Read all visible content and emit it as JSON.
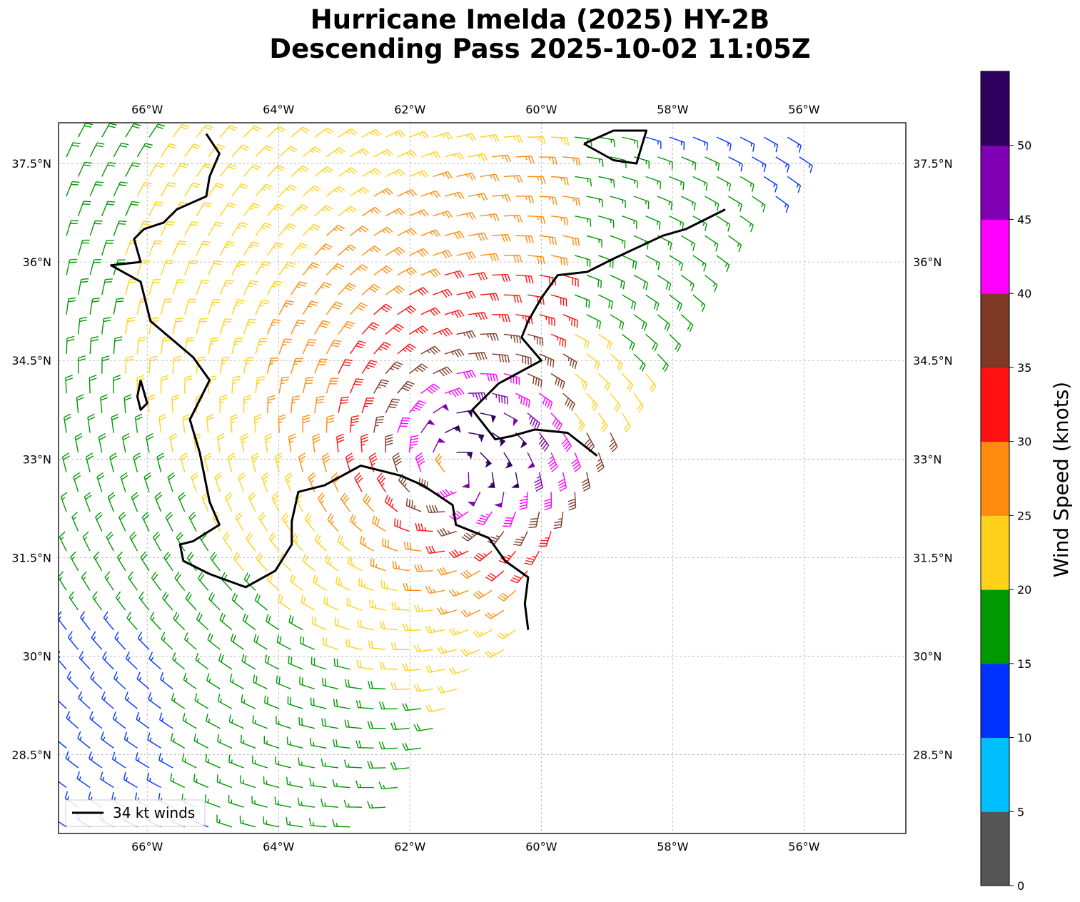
{
  "title_line1": "Hurricane Imelda (2025) HY-2B",
  "title_line2": "Descending Pass 2025-10-02 11:05Z",
  "map": {
    "lon_range": [
      -67.35,
      -54.45
    ],
    "lat_range": [
      27.3,
      38.12
    ],
    "lon_ticks": [
      {
        "value": -66,
        "label": "66°W"
      },
      {
        "value": -64,
        "label": "64°W"
      },
      {
        "value": -62,
        "label": "62°W"
      },
      {
        "value": -60,
        "label": "60°W"
      },
      {
        "value": -58,
        "label": "58°W"
      },
      {
        "value": -56,
        "label": "56°W"
      }
    ],
    "lat_ticks": [
      {
        "value": 37.5,
        "label": "37.5°N"
      },
      {
        "value": 36.0,
        "label": "36°N"
      },
      {
        "value": 34.5,
        "label": "34.5°N"
      },
      {
        "value": 33.0,
        "label": "33°N"
      },
      {
        "value": 31.5,
        "label": "31.5°N"
      },
      {
        "value": 30.0,
        "label": "30°N"
      },
      {
        "value": 28.5,
        "label": "28.5°N"
      }
    ],
    "gridlines": true,
    "legend": {
      "label": "34 kt winds",
      "line_color": "#000000",
      "position": "lower-left"
    },
    "storm_center": {
      "lon": -61.35,
      "lat": 32.85
    }
  },
  "colorbar": {
    "label": "Wind Speed (knots)",
    "range": [
      0,
      55
    ],
    "bins": [
      {
        "min": 0,
        "max": 5,
        "color": "#555555"
      },
      {
        "min": 5,
        "max": 10,
        "color": "#00BFFF"
      },
      {
        "min": 10,
        "max": 15,
        "color": "#0033FF"
      },
      {
        "min": 15,
        "max": 20,
        "color": "#009900"
      },
      {
        "min": 20,
        "max": 25,
        "color": "#FFD11A"
      },
      {
        "min": 25,
        "max": 30,
        "color": "#FF8C0D"
      },
      {
        "min": 30,
        "max": 35,
        "color": "#FF1111"
      },
      {
        "min": 35,
        "max": 40,
        "color": "#7F3A26"
      },
      {
        "min": 40,
        "max": 45,
        "color": "#FF00FF"
      },
      {
        "min": 45,
        "max": 50,
        "color": "#8000B3"
      },
      {
        "min": 50,
        "max": 55,
        "color": "#2E005E"
      }
    ],
    "ticks": [
      {
        "value": 0,
        "label": "0"
      },
      {
        "value": 5,
        "label": "5"
      },
      {
        "value": 10,
        "label": "10"
      },
      {
        "value": 15,
        "label": "15"
      },
      {
        "value": 20,
        "label": "20"
      },
      {
        "value": 25,
        "label": "25"
      },
      {
        "value": 30,
        "label": "30"
      },
      {
        "value": 35,
        "label": "35"
      },
      {
        "value": 40,
        "label": "40"
      },
      {
        "value": 45,
        "label": "45"
      },
      {
        "value": 50,
        "label": "50"
      }
    ]
  },
  "wind_34kt_contours": [
    [
      [
        -65.1,
        37.95
      ],
      [
        -64.9,
        37.65
      ],
      [
        -65.05,
        37.3
      ],
      [
        -65.1,
        37.0
      ],
      [
        -65.55,
        36.8
      ],
      [
        -65.75,
        36.6
      ],
      [
        -66.05,
        36.5
      ],
      [
        -66.2,
        36.35
      ],
      [
        -66.1,
        36.0
      ],
      [
        -66.55,
        35.95
      ],
      [
        -66.1,
        35.7
      ],
      [
        -65.95,
        35.1
      ],
      [
        -65.3,
        34.55
      ],
      [
        -65.05,
        34.2
      ],
      [
        -65.35,
        33.6
      ],
      [
        -65.2,
        33.1
      ],
      [
        -65.05,
        32.35
      ],
      [
        -64.9,
        32.0
      ],
      [
        -65.3,
        31.75
      ],
      [
        -65.5,
        31.7
      ],
      [
        -65.45,
        31.45
      ],
      [
        -65.05,
        31.25
      ],
      [
        -64.5,
        31.05
      ],
      [
        -64.05,
        31.3
      ],
      [
        -63.8,
        31.7
      ],
      [
        -63.8,
        32.05
      ],
      [
        -63.7,
        32.5
      ],
      [
        -63.3,
        32.6
      ],
      [
        -62.75,
        32.9
      ],
      [
        -62.15,
        32.75
      ],
      [
        -61.8,
        32.6
      ],
      [
        -61.35,
        32.3
      ],
      [
        -61.3,
        32.0
      ],
      [
        -60.8,
        31.8
      ],
      [
        -60.55,
        31.45
      ],
      [
        -60.2,
        31.2
      ],
      [
        -60.25,
        30.8
      ],
      [
        -60.2,
        30.4
      ]
    ],
    [
      [
        -66.1,
        34.2
      ],
      [
        -66.0,
        33.85
      ],
      [
        -66.1,
        33.75
      ],
      [
        -66.15,
        33.95
      ],
      [
        -66.1,
        34.2
      ]
    ],
    [
      [
        -59.35,
        37.8
      ],
      [
        -58.9,
        38.0
      ],
      [
        -58.4,
        38.0
      ],
      [
        -58.55,
        37.5
      ],
      [
        -58.9,
        37.55
      ],
      [
        -59.35,
        37.8
      ]
    ],
    [
      [
        -57.2,
        36.8
      ],
      [
        -57.8,
        36.5
      ],
      [
        -58.15,
        36.4
      ],
      [
        -58.9,
        36.05
      ],
      [
        -59.3,
        35.85
      ],
      [
        -59.75,
        35.8
      ],
      [
        -60.0,
        35.45
      ],
      [
        -60.2,
        35.1
      ],
      [
        -60.3,
        34.85
      ],
      [
        -60.0,
        34.5
      ],
      [
        -60.65,
        34.15
      ],
      [
        -61.05,
        33.75
      ],
      [
        -60.7,
        33.3
      ],
      [
        -60.45,
        33.35
      ],
      [
        -60.1,
        33.45
      ],
      [
        -59.6,
        33.4
      ],
      [
        -59.15,
        33.05
      ]
    ]
  ],
  "swath_edge": [
    [
      -67.35,
      27.3
    ],
    [
      -67.35,
      38.12
    ],
    [
      -56.35,
      38.12
    ],
    [
      -55.8,
      37.5
    ],
    [
      -57.2,
      36.2
    ],
    [
      -57.9,
      35.1
    ],
    [
      -58.1,
      34.45
    ],
    [
      -58.55,
      33.6
    ],
    [
      -59.05,
      32.9
    ],
    [
      -59.75,
      32.0
    ],
    [
      -60.1,
      31.1
    ],
    [
      -60.35,
      30.4
    ],
    [
      -60.95,
      29.5
    ],
    [
      -61.55,
      28.75
    ],
    [
      -62.2,
      27.9
    ],
    [
      -62.65,
      27.3
    ]
  ]
}
